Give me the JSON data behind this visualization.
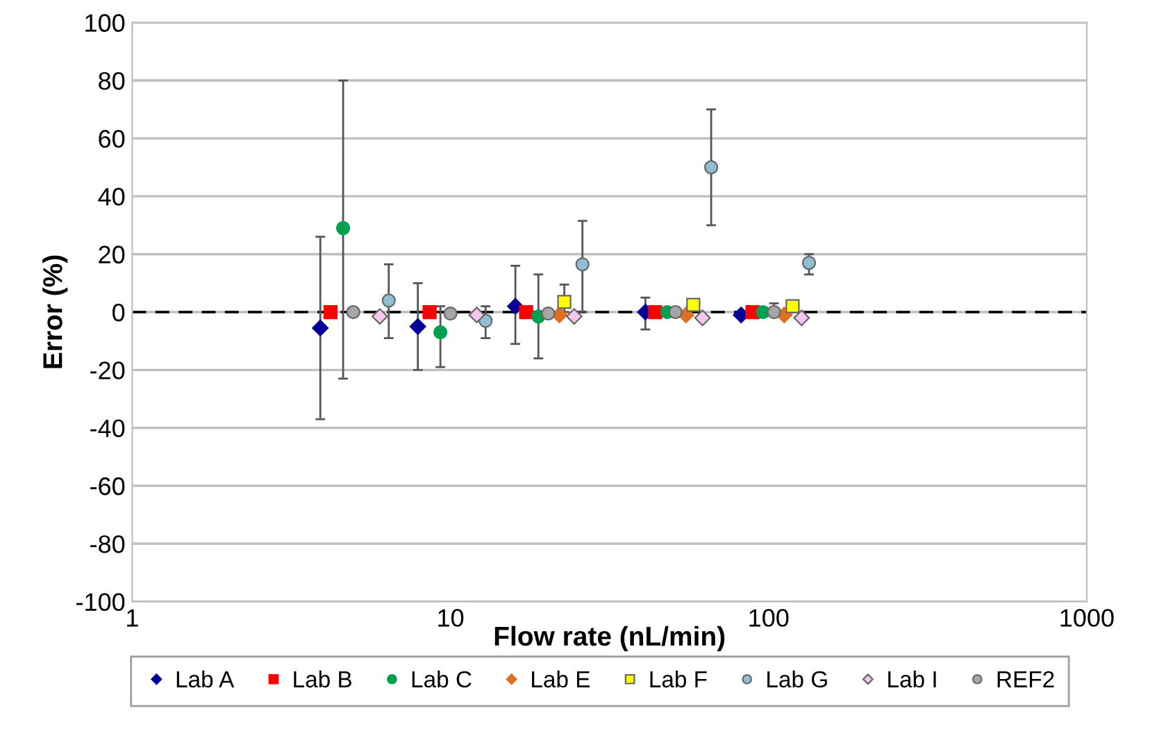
{
  "chart_data": {
    "type": "scatter",
    "xlabel": "Flow rate (nL/min)",
    "ylabel": "Error (%)",
    "log": "x",
    "xlim": [
      1,
      1000
    ],
    "xticks": [
      1,
      10,
      100,
      1000
    ],
    "ylim": [
      -100,
      100
    ],
    "yticks": [
      -100,
      -80,
      -60,
      -40,
      -20,
      0,
      20,
      40,
      60,
      80,
      100
    ],
    "grid": "y",
    "legend": "bottom",
    "ref_lines": [
      {
        "axis": "y",
        "value": 0,
        "color": "#000000",
        "line_style": "dashed"
      }
    ],
    "series": [
      {
        "name": "Lab A",
        "color": "#000099",
        "marker": "diamond",
        "x": [
          3.9,
          7.9,
          16,
          41,
          82
        ],
        "values": [
          -5.5,
          -5,
          2,
          0,
          -1
        ],
        "errors": [
          [
            -37,
            26
          ],
          [
            -20,
            10
          ],
          [
            -11,
            16
          ],
          [
            -6,
            5
          ],
          null
        ]
      },
      {
        "name": "Lab B",
        "color": "#ff0000",
        "marker": "square",
        "x": [
          4.2,
          8.6,
          17.3,
          44,
          89
        ],
        "values": [
          0,
          0,
          0,
          0,
          0
        ]
      },
      {
        "name": "Lab C",
        "color": "#00a050",
        "marker": "circle",
        "x": [
          4.6,
          9.3,
          18.9,
          48,
          96
        ],
        "values": [
          29,
          -7,
          -1.5,
          0,
          0
        ],
        "errors": [
          [
            -23,
            80
          ],
          [
            -19,
            2
          ],
          [
            -16,
            13
          ],
          null,
          null
        ]
      },
      {
        "name": "Lab E",
        "color": "#e07020",
        "marker": "diamond",
        "x": [
          22,
          55,
          112
        ],
        "values": [
          -1,
          -1,
          -1
        ]
      },
      {
        "name": "Lab F",
        "color": "#ffff00",
        "marker": "square",
        "x": [
          22.8,
          58,
          119
        ],
        "values": [
          3.5,
          2.5,
          2
        ],
        "errors": [
          [
            0,
            9.5
          ],
          null,
          null
        ]
      },
      {
        "name": "Lab G",
        "color": "#8fbfd0",
        "marker": "circle",
        "x": [
          6.4,
          12.9,
          26,
          66,
          134
        ],
        "values": [
          4,
          -3,
          16.5,
          50,
          17
        ],
        "errors": [
          [
            -9,
            16.5
          ],
          [
            -9,
            2
          ],
          [
            0,
            31.5
          ],
          [
            30,
            70
          ],
          [
            13,
            20
          ]
        ]
      },
      {
        "name": "Lab I",
        "color": "#f5c6ee",
        "marker": "diamond",
        "x": [
          6,
          12.1,
          24.5,
          62,
          127
        ],
        "values": [
          -1.5,
          -1,
          -1.5,
          -2,
          -2
        ]
      },
      {
        "name": "REF2",
        "color": "#a6a6a6",
        "marker": "circle",
        "x": [
          4.95,
          10,
          20.3,
          51,
          104
        ],
        "values": [
          0,
          -0.5,
          -0.5,
          0,
          0
        ],
        "errors": [
          null,
          null,
          null,
          null,
          [
            -1,
            3
          ]
        ]
      }
    ]
  }
}
